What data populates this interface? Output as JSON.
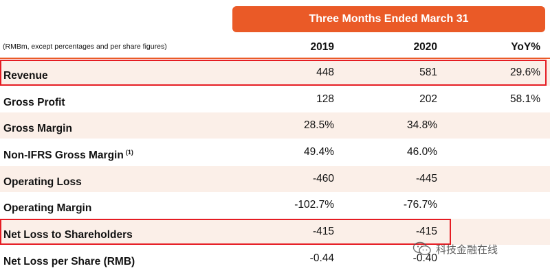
{
  "header": {
    "period": "Three Months Ended March 31",
    "note": "(RMBm, except percentages and per share figures)",
    "columns": [
      "2019",
      "2020",
      "YoY%"
    ]
  },
  "rows": [
    {
      "label": "Revenue",
      "sup": "",
      "y2019": "448",
      "y2020": "581",
      "yoy": "29.6%",
      "highlighted": true
    },
    {
      "label": "Gross Profit",
      "sup": "",
      "y2019": "128",
      "y2020": "202",
      "yoy": "58.1%"
    },
    {
      "label": "Gross Margin",
      "sup": "",
      "y2019": "28.5%",
      "y2020": "34.8%",
      "yoy": ""
    },
    {
      "label": "Non-IFRS Gross Margin",
      "sup": "(1)",
      "y2019": "49.4%",
      "y2020": "46.0%",
      "yoy": ""
    },
    {
      "label": "Operating Loss",
      "sup": "",
      "y2019": "-460",
      "y2020": "-445",
      "yoy": ""
    },
    {
      "label": "Operating Margin",
      "sup": "",
      "y2019": "-102.7%",
      "y2020": "-76.7%",
      "yoy": ""
    },
    {
      "label": "Net Loss to Shareholders",
      "sup": "",
      "y2019": "-415",
      "y2020": "-415",
      "yoy": "",
      "highlighted": true
    },
    {
      "label": "Net Loss per Share (RMB)",
      "sup": "",
      "y2019": "-0.44",
      "y2020": "-0.40",
      "yoy": ""
    }
  ],
  "watermark": {
    "text": "科技金融在线",
    "icon": "wechat-icon"
  },
  "colors": {
    "accent": "#ea5a27",
    "row_shade": "#fbefe8",
    "highlight_border": "#e51c23"
  }
}
